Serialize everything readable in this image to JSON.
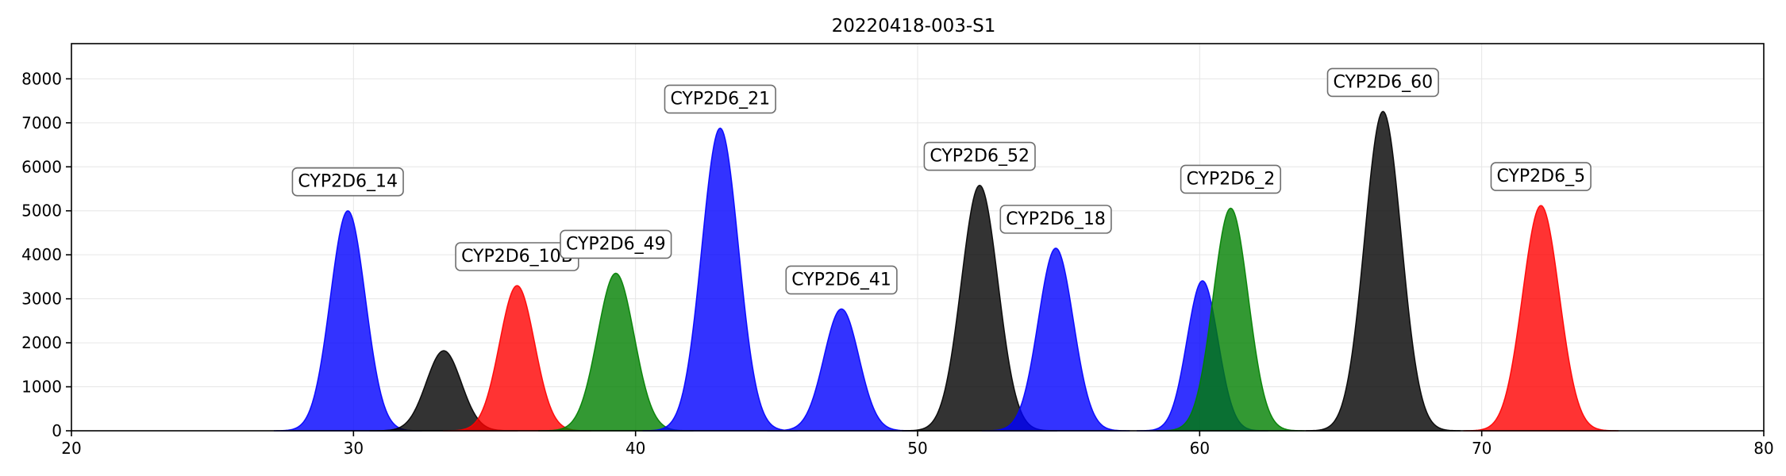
{
  "chart_data": {
    "type": "area",
    "title": "20220418-003-S1",
    "xlabel": "",
    "ylabel": "",
    "xlim": [
      20,
      80
    ],
    "ylim": [
      0,
      8800
    ],
    "xticks": [
      20,
      30,
      40,
      50,
      60,
      70,
      80
    ],
    "yticks": [
      0,
      1000,
      2000,
      3000,
      4000,
      5000,
      6000,
      7000,
      8000
    ],
    "grid": true,
    "legend": "none",
    "colors": {
      "blue": "#0000ff",
      "black": "#000000",
      "red": "#ff0000",
      "green": "#008000"
    },
    "peaks": [
      {
        "center": 29.8,
        "height": 5000,
        "sigma": 0.62,
        "color": "blue",
        "label": "CYP2D6_14"
      },
      {
        "center": 33.2,
        "height": 1820,
        "sigma": 0.62,
        "color": "black",
        "label": ""
      },
      {
        "center": 35.8,
        "height": 3300,
        "sigma": 0.62,
        "color": "red",
        "label": "CYP2D6_10B"
      },
      {
        "center": 39.3,
        "height": 3580,
        "sigma": 0.65,
        "color": "green",
        "label": "CYP2D6_49"
      },
      {
        "center": 43.0,
        "height": 6880,
        "sigma": 0.65,
        "color": "blue",
        "label": "CYP2D6_21"
      },
      {
        "center": 47.3,
        "height": 2770,
        "sigma": 0.62,
        "color": "blue",
        "label": "CYP2D6_41"
      },
      {
        "center": 52.2,
        "height": 5580,
        "sigma": 0.65,
        "color": "black",
        "label": "CYP2D6_52"
      },
      {
        "center": 54.9,
        "height": 4150,
        "sigma": 0.62,
        "color": "blue",
        "label": "CYP2D6_18"
      },
      {
        "center": 60.1,
        "height": 3410,
        "sigma": 0.55,
        "color": "blue",
        "label": ""
      },
      {
        "center": 61.1,
        "height": 5060,
        "sigma": 0.62,
        "color": "green",
        "label": "CYP2D6_2"
      },
      {
        "center": 66.5,
        "height": 7260,
        "sigma": 0.65,
        "color": "black",
        "label": "CYP2D6_60"
      },
      {
        "center": 72.1,
        "height": 5120,
        "sigma": 0.65,
        "color": "red",
        "label": "CYP2D6_5"
      }
    ]
  }
}
